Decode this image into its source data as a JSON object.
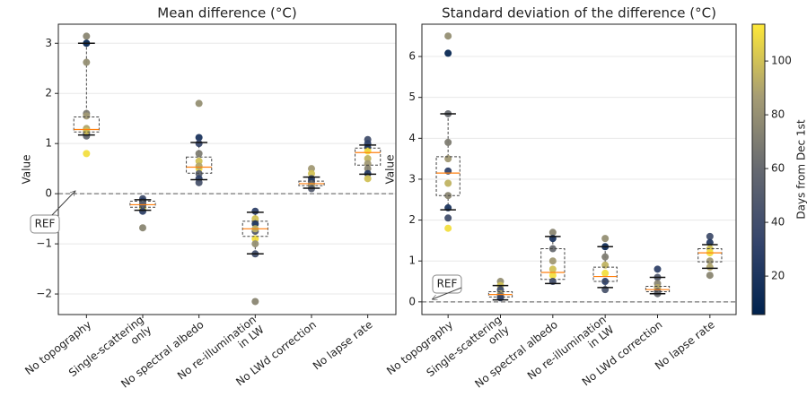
{
  "chart_data": [
    {
      "type": "box",
      "title": "Mean difference (°C)",
      "ylabel": "Value",
      "categories": [
        [
          "No topography"
        ],
        [
          "Single-scattering",
          "only"
        ],
        [
          "No spectral albedo"
        ],
        [
          "No re-illumination",
          "in LW"
        ],
        [
          "No LWd correction"
        ],
        [
          "No lapse rate"
        ]
      ],
      "ylim": [
        -2.41,
        3.38
      ],
      "yticks": [
        {
          "value": -2,
          "label": "−2"
        },
        {
          "value": -1,
          "label": "−1"
        },
        0,
        1,
        2,
        3
      ],
      "grid": true,
      "hline": 0,
      "annotation": "REF",
      "boxes": [
        {
          "whislo": 1.17,
          "q1": 1.23,
          "med": 1.28,
          "q3": 1.53,
          "whishi": 3.0
        },
        {
          "whislo": -0.33,
          "q1": -0.27,
          "med": -0.22,
          "q3": -0.15,
          "whishi": -0.12
        },
        {
          "whislo": 0.28,
          "q1": 0.41,
          "med": 0.53,
          "q3": 0.73,
          "whishi": 1.02
        },
        {
          "whislo": -1.2,
          "q1": -0.85,
          "med": -0.7,
          "q3": -0.55,
          "whishi": -0.37
        },
        {
          "whislo": 0.11,
          "q1": 0.16,
          "med": 0.2,
          "q3": 0.25,
          "whishi": 0.33
        },
        {
          "whislo": 0.39,
          "q1": 0.57,
          "med": 0.82,
          "q3": 0.91,
          "whishi": 0.97
        }
      ],
      "points": [
        {
          "values": [
            3.14,
            3.0,
            2.62,
            1.6,
            1.55,
            1.3,
            1.2,
            1.15,
            0.8,
            1.25
          ],
          "days": [
            75,
            10,
            80,
            70,
            85,
            90,
            30,
            60,
            110,
            100
          ]
        },
        {
          "values": [
            -0.1,
            -0.15,
            -0.2,
            -0.25,
            -0.3,
            -0.35,
            -0.68,
            -0.22
          ],
          "days": [
            40,
            25,
            60,
            90,
            105,
            30,
            75,
            50
          ]
        },
        {
          "values": [
            1.8,
            1.12,
            1.0,
            0.8,
            0.65,
            0.5,
            0.4,
            0.3,
            0.22,
            0.55
          ],
          "days": [
            80,
            20,
            35,
            70,
            100,
            110,
            55,
            30,
            45,
            90
          ]
        },
        {
          "values": [
            -0.35,
            -0.5,
            -0.6,
            -0.75,
            -0.9,
            -1.0,
            -1.2,
            -2.15,
            -0.7
          ],
          "days": [
            30,
            100,
            20,
            50,
            110,
            80,
            40,
            75,
            95
          ]
        },
        {
          "values": [
            0.5,
            0.4,
            0.3,
            0.25,
            0.2,
            0.15,
            0.1
          ],
          "days": [
            85,
            100,
            40,
            25,
            60,
            90,
            50
          ]
        },
        {
          "values": [
            1.08,
            1.0,
            0.92,
            0.85,
            0.7,
            0.6,
            0.5,
            0.4,
            0.3
          ],
          "days": [
            40,
            30,
            20,
            110,
            95,
            85,
            75,
            25,
            100
          ]
        }
      ]
    },
    {
      "type": "box",
      "title": "Standard deviation of the difference (°C)",
      "ylabel": "Value",
      "categories": [
        [
          "No topography"
        ],
        [
          "Single-scattering",
          "only"
        ],
        [
          "No spectral albedo"
        ],
        [
          "No re-illumination",
          "in LW"
        ],
        [
          "No LWd correction"
        ],
        [
          "No lapse rate"
        ]
      ],
      "ylim": [
        -0.31,
        6.79
      ],
      "yticks": [
        0,
        1,
        2,
        3,
        4,
        5,
        6
      ],
      "grid": true,
      "hline": 0,
      "annotation": "REF",
      "boxes": [
        {
          "whislo": 2.25,
          "q1": 2.6,
          "med": 3.15,
          "q3": 3.55,
          "whishi": 4.6
        },
        {
          "whislo": 0.05,
          "q1": 0.12,
          "med": 0.18,
          "q3": 0.25,
          "whishi": 0.4
        },
        {
          "whislo": 0.45,
          "q1": 0.55,
          "med": 0.72,
          "q3": 1.3,
          "whishi": 1.6
        },
        {
          "whislo": 0.35,
          "q1": 0.5,
          "med": 0.62,
          "q3": 0.85,
          "whishi": 1.35
        },
        {
          "whislo": 0.2,
          "q1": 0.25,
          "med": 0.3,
          "q3": 0.38,
          "whishi": 0.6
        },
        {
          "whislo": 0.82,
          "q1": 0.98,
          "med": 1.2,
          "q3": 1.3,
          "whishi": 1.4
        }
      ],
      "points": [
        {
          "values": [
            6.5,
            6.08,
            4.6,
            3.9,
            3.5,
            3.2,
            2.9,
            2.6,
            2.3,
            2.05,
            1.8
          ],
          "days": [
            80,
            10,
            60,
            70,
            85,
            30,
            95,
            75,
            20,
            40,
            110
          ]
        },
        {
          "values": [
            0.5,
            0.4,
            0.3,
            0.2,
            0.15,
            0.1
          ],
          "days": [
            80,
            100,
            40,
            90,
            60,
            30
          ]
        },
        {
          "values": [
            1.7,
            1.55,
            1.3,
            1.0,
            0.8,
            0.65,
            0.5
          ],
          "days": [
            75,
            20,
            60,
            85,
            100,
            110,
            40
          ]
        },
        {
          "values": [
            1.55,
            1.35,
            1.1,
            0.9,
            0.7,
            0.5,
            0.3
          ],
          "days": [
            80,
            15,
            70,
            95,
            110,
            30,
            45
          ]
        },
        {
          "values": [
            0.8,
            0.6,
            0.45,
            0.35,
            0.25,
            0.2
          ],
          "days": [
            30,
            50,
            75,
            90,
            40,
            60
          ]
        },
        {
          "values": [
            1.6,
            1.45,
            1.3,
            1.2,
            1.0,
            0.85,
            0.65
          ],
          "days": [
            40,
            25,
            100,
            110,
            85,
            90,
            75
          ]
        }
      ]
    }
  ],
  "colorbar": {
    "label": "Days from Dec 1st",
    "clim": [
      5.7,
      113.7
    ],
    "ticks": [
      20,
      40,
      60,
      80,
      100
    ]
  }
}
